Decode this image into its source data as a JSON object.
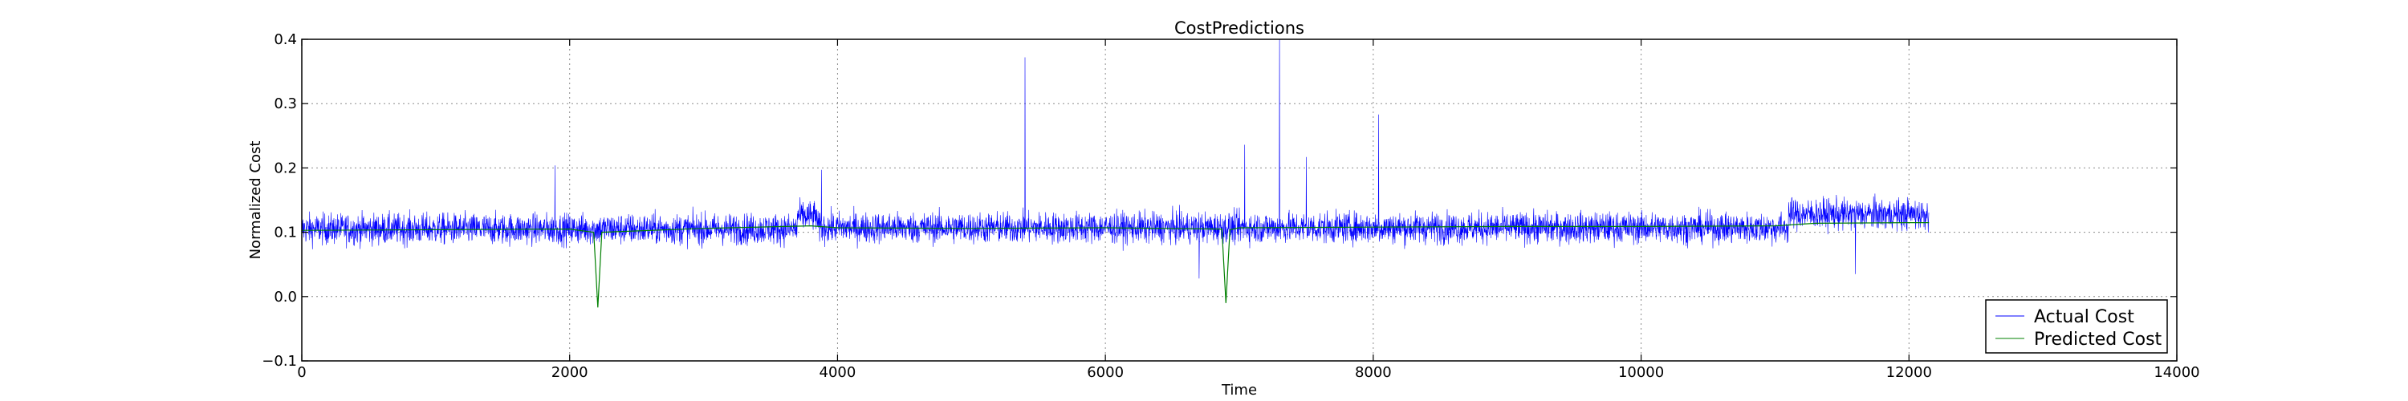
{
  "chart_data": {
    "type": "line",
    "title": "CostPredictions",
    "xlabel": "Time",
    "ylabel": "Normalized Cost",
    "xlim": [
      0,
      14000
    ],
    "ylim": [
      -0.1,
      0.4
    ],
    "xticks": [
      0,
      2000,
      4000,
      6000,
      8000,
      10000,
      12000,
      14000
    ],
    "yticks": [
      -0.1,
      0.0,
      0.1,
      0.2,
      0.3,
      0.4
    ],
    "xtick_labels": [
      "0",
      "2000",
      "4000",
      "6000",
      "8000",
      "10000",
      "12000",
      "14000"
    ],
    "ytick_labels": [
      "−0.1",
      "0.0",
      "0.1",
      "0.2",
      "0.3",
      "0.4"
    ],
    "grid": true,
    "legend_position": "bottom-right",
    "series": [
      {
        "name": "Actual Cost",
        "color": "#0000ff",
        "n_points": 12150,
        "baseline": 0.105,
        "noise_amplitude": 0.022,
        "regimes": [
          {
            "x": [
              0,
              3700
            ],
            "mean": 0.105
          },
          {
            "x": [
              3700,
              3850
            ],
            "mean": 0.125
          },
          {
            "x": [
              3850,
              11100
            ],
            "mean": 0.107
          },
          {
            "x": [
              11100,
              12150
            ],
            "mean": 0.128
          }
        ],
        "spikes": [
          {
            "x": 1890,
            "y": 0.204
          },
          {
            "x": 3880,
            "y": 0.197
          },
          {
            "x": 5400,
            "y": 0.372
          },
          {
            "x": 6700,
            "y": 0.028
          },
          {
            "x": 7040,
            "y": 0.236
          },
          {
            "x": 7300,
            "y": 0.4
          },
          {
            "x": 7500,
            "y": 0.217
          },
          {
            "x": 8040,
            "y": 0.283
          },
          {
            "x": 11600,
            "y": 0.035
          }
        ]
      },
      {
        "name": "Predicted Cost",
        "color": "#008000",
        "points": [
          [
            0,
            0.103
          ],
          [
            1000,
            0.104
          ],
          [
            2000,
            0.105
          ],
          [
            2180,
            0.1
          ],
          [
            2210,
            -0.017
          ],
          [
            2240,
            0.1
          ],
          [
            3000,
            0.106
          ],
          [
            3800,
            0.11
          ],
          [
            4000,
            0.107
          ],
          [
            5000,
            0.106
          ],
          [
            6000,
            0.107
          ],
          [
            6870,
            0.105
          ],
          [
            6900,
            -0.01
          ],
          [
            6930,
            0.104
          ],
          [
            7000,
            0.107
          ],
          [
            8000,
            0.108
          ],
          [
            9000,
            0.109
          ],
          [
            10000,
            0.109
          ],
          [
            11000,
            0.11
          ],
          [
            11300,
            0.114
          ],
          [
            12000,
            0.115
          ],
          [
            12150,
            0.115
          ]
        ]
      }
    ]
  }
}
